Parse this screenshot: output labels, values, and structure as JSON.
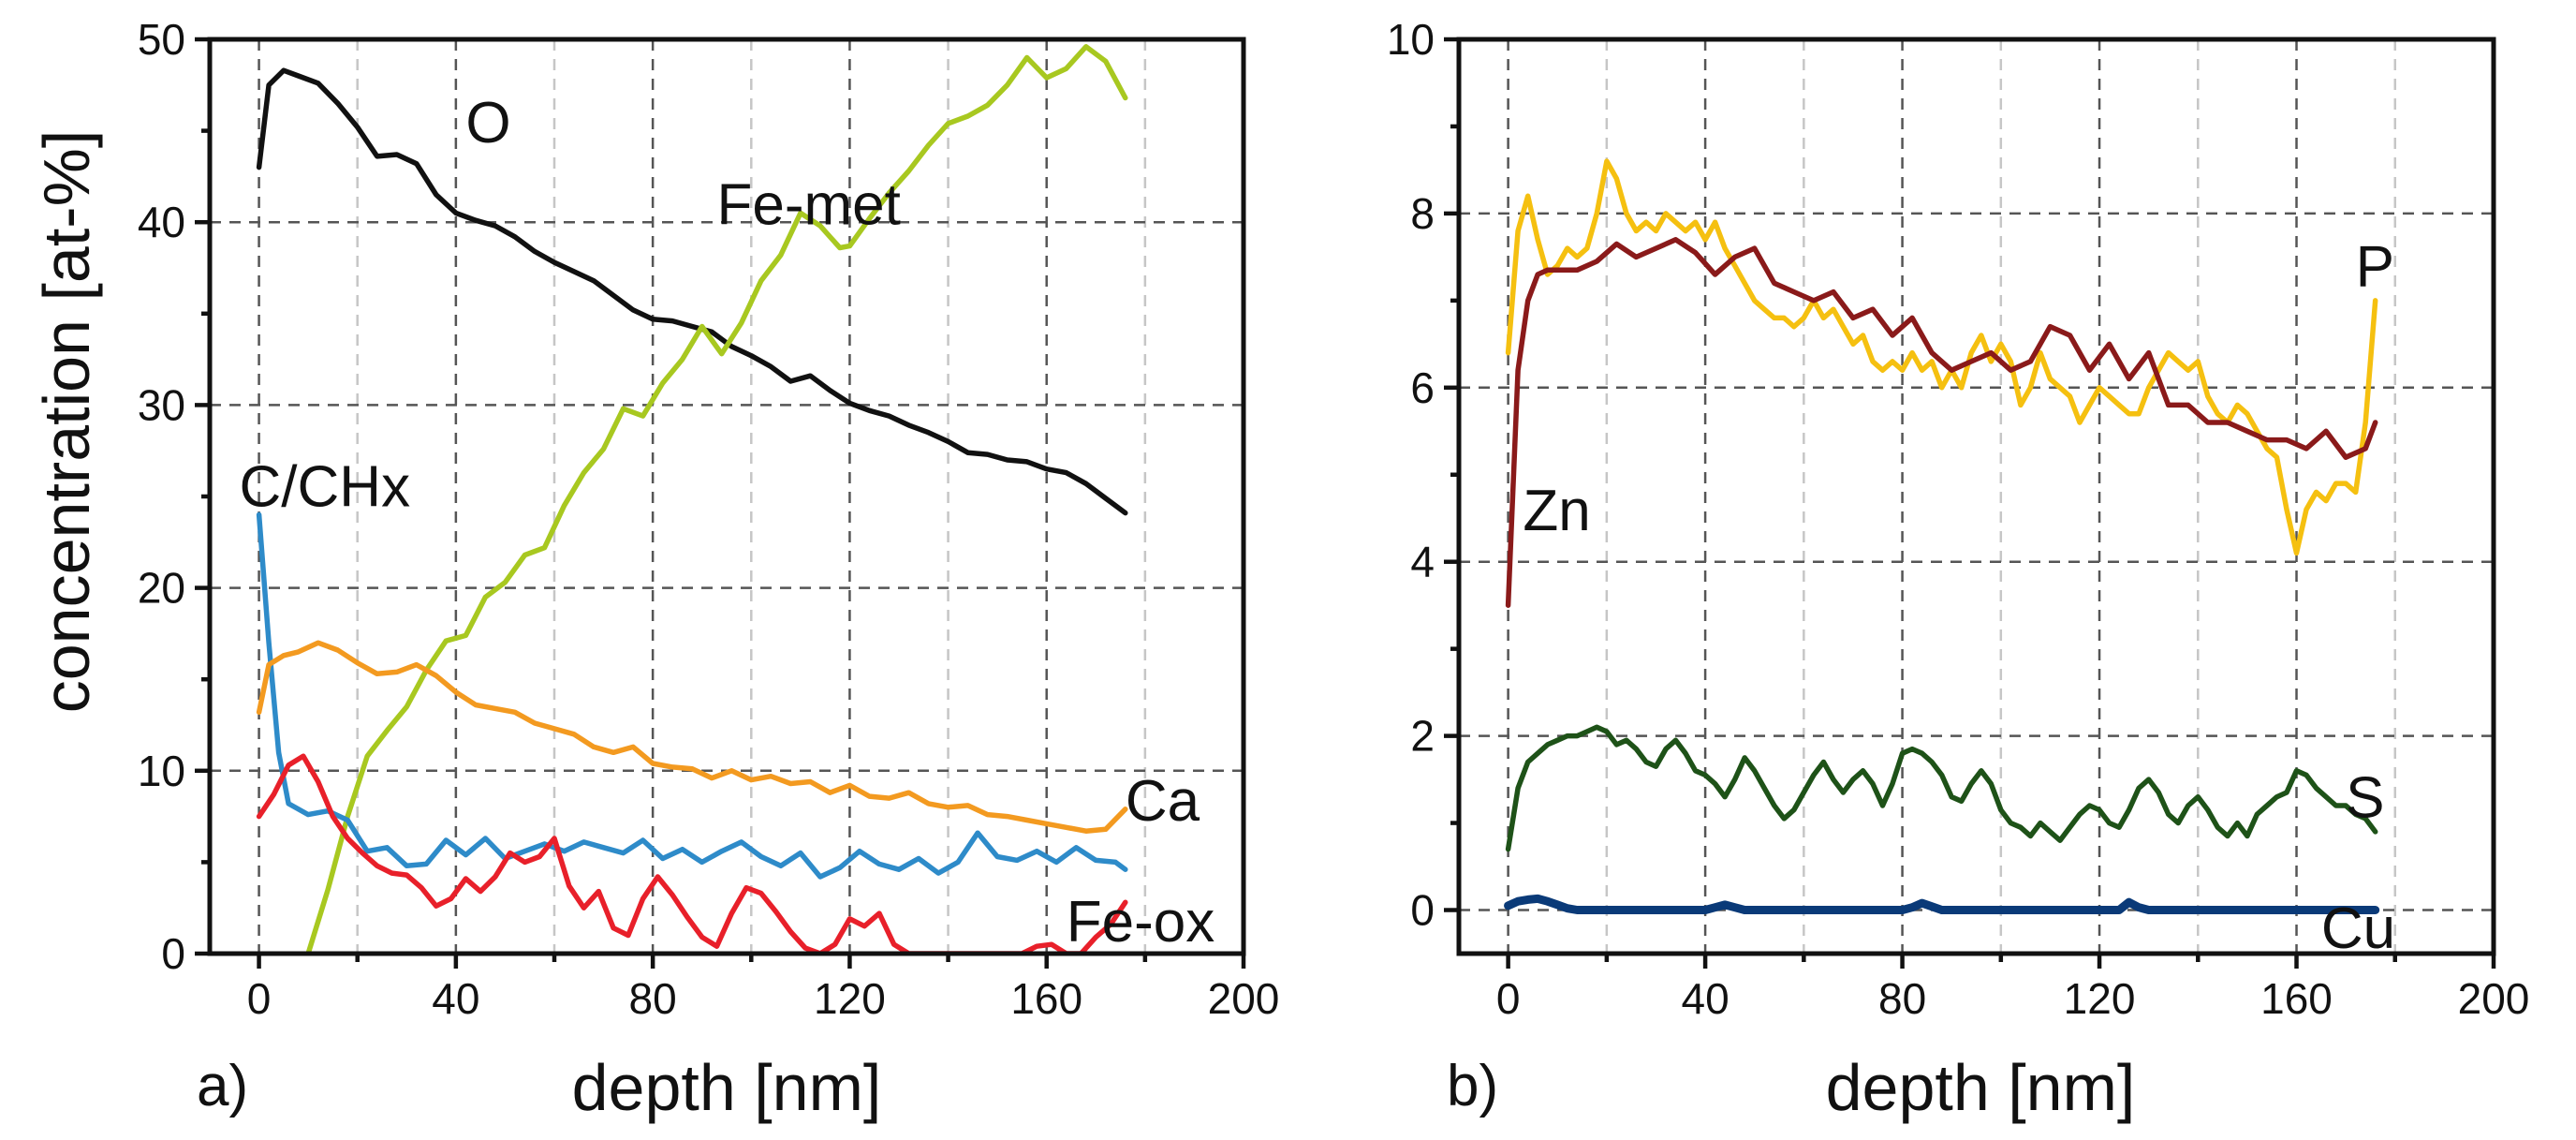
{
  "chart_data": [
    {
      "type": "line",
      "panel_label": "a)",
      "xlabel": "depth [nm]",
      "ylabel": "concentration [at-%]",
      "xlim": [
        -10,
        200
      ],
      "ylim": [
        0,
        50
      ],
      "xticks": [
        0,
        40,
        80,
        120,
        160,
        200
      ],
      "yticks": [
        0,
        10,
        20,
        30,
        40,
        50
      ],
      "grid": true,
      "series": [
        {
          "name": "O",
          "label": "O",
          "color": "#111111",
          "x": [
            0,
            2,
            5,
            8,
            12,
            16,
            20,
            24,
            28,
            32,
            36,
            40,
            44,
            48,
            52,
            56,
            60,
            64,
            68,
            72,
            76,
            80,
            84,
            88,
            92,
            96,
            100,
            104,
            108,
            112,
            116,
            120,
            124,
            128,
            132,
            136,
            140,
            144,
            148,
            152,
            156,
            160,
            164,
            168,
            172,
            176
          ],
          "y": [
            43,
            47.5,
            48.3,
            48,
            47.6,
            46.5,
            45.2,
            43.6,
            43.7,
            43.2,
            41.5,
            40.5,
            40.1,
            39.8,
            39.2,
            38.4,
            37.8,
            37.3,
            36.8,
            36,
            35.2,
            34.7,
            34.6,
            34.3,
            34.0,
            33.2,
            32.7,
            32.1,
            31.3,
            31.6,
            30.8,
            30.1,
            29.7,
            29.4,
            28.9,
            28.5,
            28.0,
            27.4,
            27.3,
            27.0,
            26.9,
            26.5,
            26.3,
            25.7,
            24.9,
            24.1
          ],
          "label_anchor": [
            42,
            45.5
          ]
        },
        {
          "name": "Fe-met",
          "label": "Fe-met",
          "color": "#a8c820",
          "x": [
            10,
            14,
            18,
            22,
            26,
            30,
            34,
            38,
            42,
            46,
            50,
            54,
            58,
            62,
            66,
            70,
            74,
            78,
            82,
            86,
            90,
            94,
            98,
            102,
            106,
            110,
            114,
            118,
            120,
            124,
            128,
            132,
            136,
            140,
            144,
            148,
            152,
            156,
            160,
            164,
            168,
            172,
            176
          ],
          "y": [
            0,
            3.5,
            7.5,
            10.8,
            12.2,
            13.5,
            15.5,
            17.1,
            17.4,
            19.5,
            20.3,
            21.8,
            22.2,
            24.5,
            26.3,
            27.6,
            29.8,
            29.4,
            31.2,
            32.5,
            34.3,
            32.8,
            34.5,
            36.8,
            38.2,
            40.5,
            39.8,
            38.6,
            38.7,
            40.2,
            41.6,
            42.8,
            44.2,
            45.4,
            45.8,
            46.4,
            47.5,
            49.0,
            47.9,
            48.4,
            49.6,
            48.8,
            46.8
          ],
          "label_anchor": [
            93,
            41
          ]
        },
        {
          "name": "C/CHx",
          "label": "C/CHx",
          "color": "#2e8bc9",
          "x": [
            0,
            2,
            4,
            6,
            10,
            14,
            18,
            22,
            26,
            30,
            34,
            38,
            42,
            46,
            50,
            54,
            58,
            62,
            66,
            70,
            74,
            78,
            82,
            86,
            90,
            94,
            98,
            102,
            106,
            110,
            114,
            118,
            122,
            126,
            130,
            134,
            138,
            142,
            146,
            150,
            154,
            158,
            162,
            166,
            170,
            174,
            176
          ],
          "y": [
            24,
            17,
            11,
            8.2,
            7.6,
            7.8,
            7.3,
            5.6,
            5.8,
            4.8,
            4.9,
            6.2,
            5.4,
            6.3,
            5.2,
            5.6,
            6.0,
            5.6,
            6.1,
            5.8,
            5.5,
            6.2,
            5.2,
            5.7,
            5.0,
            5.6,
            6.1,
            5.3,
            4.8,
            5.5,
            4.2,
            4.7,
            5.6,
            4.9,
            4.6,
            5.2,
            4.4,
            5.0,
            6.6,
            5.3,
            5.1,
            5.6,
            5.0,
            5.8,
            5.1,
            5.0,
            4.6
          ],
          "label_anchor": [
            -4,
            25.6
          ]
        },
        {
          "name": "Ca",
          "label": "Ca",
          "color": "#f39a20",
          "x": [
            0,
            2,
            5,
            8,
            12,
            16,
            20,
            24,
            28,
            32,
            36,
            40,
            44,
            48,
            52,
            56,
            60,
            64,
            68,
            72,
            76,
            80,
            84,
            88,
            92,
            96,
            100,
            104,
            108,
            112,
            116,
            120,
            124,
            128,
            132,
            136,
            140,
            144,
            148,
            152,
            156,
            160,
            164,
            168,
            172,
            176
          ],
          "y": [
            13.2,
            15.8,
            16.3,
            16.5,
            17,
            16.6,
            15.9,
            15.3,
            15.4,
            15.8,
            15.2,
            14.3,
            13.6,
            13.4,
            13.2,
            12.6,
            12.3,
            12.0,
            11.3,
            11.0,
            11.3,
            10.4,
            10.2,
            10.1,
            9.6,
            10.0,
            9.5,
            9.7,
            9.3,
            9.4,
            8.8,
            9.2,
            8.6,
            8.5,
            8.8,
            8.2,
            8.0,
            8.1,
            7.6,
            7.5,
            7.3,
            7.1,
            6.9,
            6.7,
            6.8,
            7.9
          ],
          "label_anchor": [
            176,
            8.4
          ]
        },
        {
          "name": "Fe-ox",
          "label": "Fe-ox",
          "color": "#e8202a",
          "x": [
            0,
            3,
            6,
            9,
            12,
            15,
            18,
            21,
            24,
            27,
            30,
            33,
            36,
            39,
            42,
            45,
            48,
            51,
            54,
            57,
            60,
            63,
            66,
            69,
            72,
            75,
            78,
            81,
            84,
            87,
            90,
            93,
            96,
            99,
            102,
            105,
            108,
            111,
            114,
            117,
            120,
            123,
            126,
            129,
            132,
            150,
            155,
            158,
            161,
            164,
            167,
            170,
            173,
            176
          ],
          "y": [
            7.5,
            8.7,
            10.3,
            10.8,
            9.4,
            7.5,
            6.3,
            5.5,
            4.8,
            4.4,
            4.3,
            3.6,
            2.6,
            3.0,
            4.1,
            3.4,
            4.2,
            5.5,
            5.0,
            5.3,
            6.3,
            3.7,
            2.5,
            3.4,
            1.4,
            1.0,
            3.0,
            4.2,
            3.2,
            2.0,
            0.9,
            0.4,
            2.2,
            3.6,
            3.3,
            2.3,
            1.2,
            0.3,
            0,
            0.5,
            1.9,
            1.5,
            2.2,
            0.5,
            0,
            0,
            0,
            0.4,
            0.5,
            0,
            0,
            0.9,
            1.6,
            2.8
          ],
          "label_anchor": [
            164,
            1.8
          ]
        }
      ]
    },
    {
      "type": "line",
      "panel_label": "b)",
      "xlabel": "depth [nm]",
      "ylabel": "",
      "xlim": [
        -10,
        200
      ],
      "ylim": [
        -0.5,
        10
      ],
      "xticks": [
        0,
        40,
        80,
        120,
        160,
        200
      ],
      "yticks": [
        0,
        2,
        4,
        6,
        8,
        10
      ],
      "grid": true,
      "series": [
        {
          "name": "P",
          "label": "P",
          "color": "#f5c010",
          "x": [
            0,
            2,
            4,
            6,
            8,
            10,
            12,
            14,
            16,
            18,
            20,
            22,
            24,
            26,
            28,
            30,
            32,
            34,
            36,
            38,
            40,
            42,
            44,
            46,
            48,
            50,
            52,
            54,
            56,
            58,
            60,
            62,
            64,
            66,
            68,
            70,
            72,
            74,
            76,
            78,
            80,
            82,
            84,
            86,
            88,
            90,
            92,
            94,
            96,
            98,
            100,
            102,
            104,
            106,
            108,
            110,
            112,
            114,
            116,
            118,
            120,
            122,
            124,
            126,
            128,
            130,
            132,
            134,
            136,
            138,
            140,
            142,
            144,
            146,
            148,
            150,
            152,
            154,
            156,
            158,
            160,
            162,
            164,
            166,
            168,
            170,
            172,
            174,
            176
          ],
          "y": [
            6.4,
            7.8,
            8.2,
            7.7,
            7.3,
            7.4,
            7.6,
            7.5,
            7.6,
            8.0,
            8.6,
            8.4,
            8.0,
            7.8,
            7.9,
            7.8,
            8.0,
            7.9,
            7.8,
            7.9,
            7.7,
            7.9,
            7.6,
            7.4,
            7.2,
            7.0,
            6.9,
            6.8,
            6.8,
            6.7,
            6.8,
            7.0,
            6.8,
            6.9,
            6.7,
            6.5,
            6.6,
            6.3,
            6.2,
            6.3,
            6.2,
            6.4,
            6.2,
            6.3,
            6.0,
            6.2,
            6.0,
            6.4,
            6.6,
            6.3,
            6.5,
            6.3,
            5.8,
            6.0,
            6.4,
            6.1,
            6.0,
            5.9,
            5.6,
            5.8,
            6.0,
            5.9,
            5.8,
            5.7,
            5.7,
            6.0,
            6.2,
            6.4,
            6.3,
            6.2,
            6.3,
            5.9,
            5.7,
            5.6,
            5.8,
            5.7,
            5.5,
            5.3,
            5.2,
            4.6,
            4.1,
            4.6,
            4.8,
            4.7,
            4.9,
            4.9,
            4.8,
            5.6,
            7.0
          ],
          "label_anchor": [
            172,
            7.4
          ]
        },
        {
          "name": "Zn",
          "label": "Zn",
          "color": "#8a1a1a",
          "x": [
            0,
            2,
            4,
            6,
            8,
            10,
            14,
            18,
            22,
            26,
            30,
            34,
            38,
            42,
            46,
            50,
            54,
            58,
            62,
            66,
            70,
            74,
            78,
            82,
            86,
            90,
            94,
            98,
            102,
            106,
            110,
            114,
            118,
            122,
            126,
            130,
            134,
            138,
            142,
            146,
            150,
            154,
            158,
            162,
            166,
            170,
            174,
            176
          ],
          "y": [
            3.5,
            6.2,
            7.0,
            7.3,
            7.35,
            7.35,
            7.35,
            7.45,
            7.65,
            7.5,
            7.6,
            7.7,
            7.55,
            7.3,
            7.5,
            7.6,
            7.2,
            7.1,
            7.0,
            7.1,
            6.8,
            6.9,
            6.6,
            6.8,
            6.4,
            6.2,
            6.3,
            6.4,
            6.2,
            6.3,
            6.7,
            6.6,
            6.2,
            6.5,
            6.1,
            6.4,
            5.8,
            5.8,
            5.6,
            5.6,
            5.5,
            5.4,
            5.4,
            5.3,
            5.5,
            5.2,
            5.3,
            5.6
          ],
          "label_anchor": [
            3,
            4.6
          ]
        },
        {
          "name": "S",
          "label": "S",
          "color": "#1e5218",
          "x": [
            0,
            2,
            4,
            6,
            8,
            10,
            12,
            14,
            16,
            18,
            20,
            22,
            24,
            26,
            28,
            30,
            32,
            34,
            36,
            38,
            40,
            42,
            44,
            46,
            48,
            50,
            52,
            54,
            56,
            58,
            60,
            62,
            64,
            66,
            68,
            70,
            72,
            74,
            76,
            78,
            80,
            82,
            84,
            86,
            88,
            90,
            92,
            94,
            96,
            98,
            100,
            102,
            104,
            106,
            108,
            110,
            112,
            114,
            116,
            118,
            120,
            122,
            124,
            126,
            128,
            130,
            132,
            134,
            136,
            138,
            140,
            142,
            144,
            146,
            148,
            150,
            152,
            154,
            156,
            158,
            160,
            162,
            164,
            166,
            168,
            170,
            172,
            174,
            176
          ],
          "y": [
            0.7,
            1.4,
            1.7,
            1.8,
            1.9,
            1.95,
            2.0,
            2.0,
            2.05,
            2.1,
            2.05,
            1.9,
            1.95,
            1.85,
            1.7,
            1.65,
            1.85,
            1.95,
            1.8,
            1.6,
            1.55,
            1.45,
            1.3,
            1.5,
            1.75,
            1.6,
            1.4,
            1.2,
            1.05,
            1.15,
            1.35,
            1.55,
            1.7,
            1.5,
            1.35,
            1.5,
            1.6,
            1.45,
            1.2,
            1.45,
            1.8,
            1.85,
            1.8,
            1.7,
            1.55,
            1.3,
            1.25,
            1.45,
            1.6,
            1.45,
            1.15,
            1.0,
            0.95,
            0.85,
            1.0,
            0.9,
            0.8,
            0.95,
            1.1,
            1.2,
            1.15,
            1.0,
            0.95,
            1.15,
            1.4,
            1.5,
            1.35,
            1.1,
            1.0,
            1.2,
            1.3,
            1.15,
            0.95,
            0.85,
            1.0,
            0.85,
            1.1,
            1.2,
            1.3,
            1.35,
            1.6,
            1.55,
            1.4,
            1.3,
            1.2,
            1.2,
            1.1,
            1.05,
            0.9
          ],
          "label_anchor": [
            170,
            1.3
          ]
        },
        {
          "name": "Cu",
          "label": "Cu",
          "color": "#0a3a78",
          "x": [
            0,
            2,
            4,
            6,
            8,
            10,
            12,
            14,
            18,
            40,
            42,
            44,
            46,
            48,
            80,
            82,
            84,
            86,
            88,
            124,
            126,
            128,
            130,
            132,
            176
          ],
          "y": [
            0.05,
            0.1,
            0.12,
            0.13,
            0.1,
            0.06,
            0.02,
            0,
            0,
            0,
            0.03,
            0.06,
            0.03,
            0,
            0,
            0.03,
            0.08,
            0.04,
            0,
            0,
            0.09,
            0.03,
            0,
            0,
            0
          ],
          "label_anchor": [
            165,
            -0.2
          ]
        }
      ]
    }
  ]
}
